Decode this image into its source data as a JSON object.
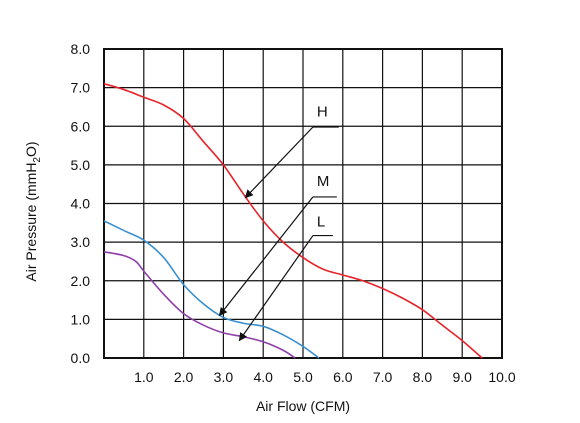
{
  "chart_data": {
    "type": "line",
    "title": "",
    "xlabel": "Air Flow (CFM)",
    "ylabel_parts": [
      "Air Pressure (mmH",
      "2",
      "O)"
    ],
    "xlim": [
      0,
      10
    ],
    "ylim": [
      0,
      8
    ],
    "grid": true,
    "x_ticks": [
      {
        "v": 1,
        "label": "1.0"
      },
      {
        "v": 2,
        "label": "2.0"
      },
      {
        "v": 3,
        "label": "3.0"
      },
      {
        "v": 4,
        "label": "4.0"
      },
      {
        "v": 5,
        "label": "5.0"
      },
      {
        "v": 6,
        "label": "6.0"
      },
      {
        "v": 7,
        "label": "7.0"
      },
      {
        "v": 8,
        "label": "8.0"
      },
      {
        "v": 9,
        "label": "9.0"
      },
      {
        "v": 10,
        "label": "10.0"
      }
    ],
    "y_ticks": [
      {
        "v": 0,
        "label": "0.0"
      },
      {
        "v": 1,
        "label": "1.0"
      },
      {
        "v": 2,
        "label": "2.0"
      },
      {
        "v": 3,
        "label": "3.0"
      },
      {
        "v": 4,
        "label": "4.0"
      },
      {
        "v": 5,
        "label": "5.0"
      },
      {
        "v": 6,
        "label": "6.0"
      },
      {
        "v": 7,
        "label": "7.0"
      },
      {
        "v": 8,
        "label": "8.0"
      }
    ],
    "series": [
      {
        "name": "H",
        "color": "#e8232a",
        "points": [
          [
            0,
            7.1
          ],
          [
            0.5,
            6.95
          ],
          [
            1.0,
            6.75
          ],
          [
            1.5,
            6.55
          ],
          [
            2.0,
            6.2
          ],
          [
            2.5,
            5.6
          ],
          [
            3.0,
            5.0
          ],
          [
            3.5,
            4.25
          ],
          [
            4.0,
            3.55
          ],
          [
            4.5,
            3.0
          ],
          [
            5.0,
            2.6
          ],
          [
            5.5,
            2.3
          ],
          [
            6.0,
            2.15
          ],
          [
            6.5,
            2.0
          ],
          [
            7.0,
            1.8
          ],
          [
            7.5,
            1.55
          ],
          [
            8.0,
            1.25
          ],
          [
            8.5,
            0.85
          ],
          [
            9.0,
            0.45
          ],
          [
            9.5,
            0.0
          ]
        ]
      },
      {
        "name": "M",
        "color": "#3a8fd0",
        "points": [
          [
            0,
            3.55
          ],
          [
            0.5,
            3.3
          ],
          [
            1.0,
            3.05
          ],
          [
            1.5,
            2.6
          ],
          [
            2.0,
            1.9
          ],
          [
            2.5,
            1.4
          ],
          [
            3.0,
            1.05
          ],
          [
            3.5,
            0.9
          ],
          [
            4.0,
            0.82
          ],
          [
            4.5,
            0.6
          ],
          [
            5.0,
            0.3
          ],
          [
            5.4,
            0.0
          ]
        ]
      },
      {
        "name": "L",
        "color": "#8e3fa8",
        "points": [
          [
            0,
            2.75
          ],
          [
            0.5,
            2.65
          ],
          [
            0.8,
            2.5
          ],
          [
            1.0,
            2.25
          ],
          [
            1.5,
            1.65
          ],
          [
            2.0,
            1.15
          ],
          [
            2.5,
            0.85
          ],
          [
            3.0,
            0.65
          ],
          [
            3.5,
            0.55
          ],
          [
            4.0,
            0.42
          ],
          [
            4.5,
            0.2
          ],
          [
            4.8,
            0.0
          ]
        ]
      }
    ],
    "annotations": [
      {
        "label": "H",
        "label_at": [
          5.35,
          6.25
        ],
        "underline": [
          5.25,
          5.9,
          5.98
        ],
        "arrow_from": [
          5.25,
          5.98
        ],
        "arrow_to": [
          3.55,
          4.15
        ]
      },
      {
        "label": "M",
        "label_at": [
          5.35,
          4.45
        ],
        "underline": [
          5.25,
          5.85,
          4.17
        ],
        "arrow_from": [
          5.25,
          4.17
        ],
        "arrow_to": [
          2.9,
          1.1
        ]
      },
      {
        "label": "L",
        "label_at": [
          5.35,
          3.4
        ],
        "underline": [
          5.25,
          5.75,
          3.17
        ],
        "arrow_from": [
          5.25,
          3.17
        ],
        "arrow_to": [
          3.4,
          0.45
        ]
      }
    ]
  }
}
